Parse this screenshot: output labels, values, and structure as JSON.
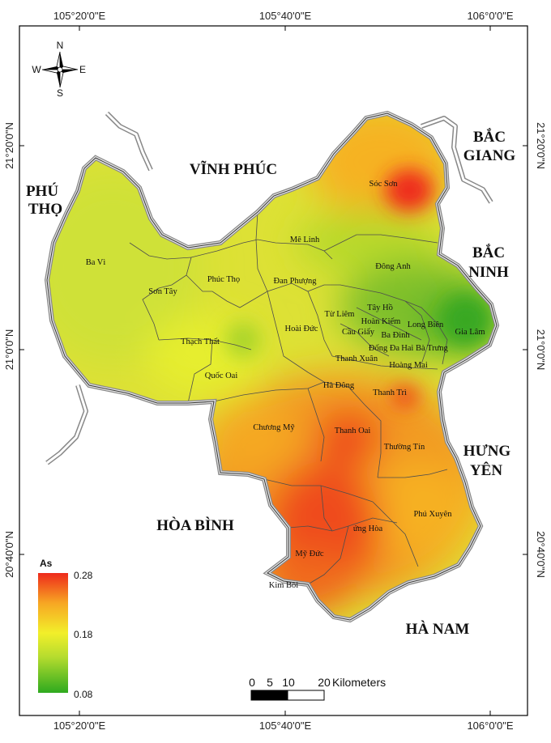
{
  "graticule": {
    "longitudes": [
      "105°20'0\"E",
      "105°40'0\"E",
      "106°0'0\"E"
    ],
    "latitudes": [
      "21°20'0\"N",
      "21°0'0\"N",
      "20°40'0\"N"
    ]
  },
  "compass": {
    "n": "N",
    "s": "S",
    "e": "E",
    "w": "W"
  },
  "provinces": {
    "vinh_phuc": "VĨNH PHÚC",
    "phu_tho_1": "PHÚ",
    "phu_tho_2": "THỌ",
    "bac_giang_1": "BẮC",
    "bac_giang_2": "GIANG",
    "bac_ninh_1": "BẮC",
    "bac_ninh_2": "NINH",
    "hung_yen_1": "HƯNG",
    "hung_yen_2": "YÊN",
    "hoa_binh": "HÒA BÌNH",
    "ha_nam": "HÀ NAM"
  },
  "districts": {
    "soc_son": "Sóc Sơn",
    "me_linh": "Mê Linh",
    "dong_anh": "Đông Anh",
    "ba_vi": "Ba Vì",
    "son_tay": "Sơn Tây",
    "phuc_tho": "Phúc Thọ",
    "dan_phuong": "Đan Phượng",
    "tu_liem": "Từ Liêm",
    "tay_ho": "Tây Hồ",
    "hoan_kiem": "Hoàn Kiếm",
    "long_bien": "Long Biên",
    "cau_giay": "Cầu Giấy",
    "ba_dinh": "Ba Đình",
    "gia_lam": "Gia Lâm",
    "hoai_duc": "Hoài Đức",
    "thach_that": "Thạch Thất",
    "dong_da": "Đống Đa",
    "hai_ba_trung": "Hai Bà Trưng",
    "thanh_xuan": "Thanh Xuân",
    "hoang_mai": "Hoàng Mai",
    "quoc_oai": "Quốc Oai",
    "ha_dong": "Hà Đông",
    "thanh_tri": "Thanh Trì",
    "chuong_my": "Chương Mỹ",
    "thanh_oai": "Thanh Oai",
    "thuong_tin": "Thường Tín",
    "phu_xuyen": "Phú Xuyên",
    "ung_hoa": "ứng Hòa",
    "my_duc": "Mỹ Đức",
    "kim_boi": "Kim Bôi"
  },
  "legend": {
    "title": "As",
    "max": "0.28",
    "mid": "0.18",
    "min": "0.08",
    "max_value": 0.28,
    "mid_value": 0.18,
    "min_value": 0.08,
    "colors": [
      "#2eaa1f",
      "#b6dc2e",
      "#f2ef2a",
      "#f7a623",
      "#ee2a1b"
    ]
  },
  "scalebar": {
    "ticks": [
      "0",
      "5",
      "10",
      "20"
    ],
    "unit": "Kilometers"
  }
}
